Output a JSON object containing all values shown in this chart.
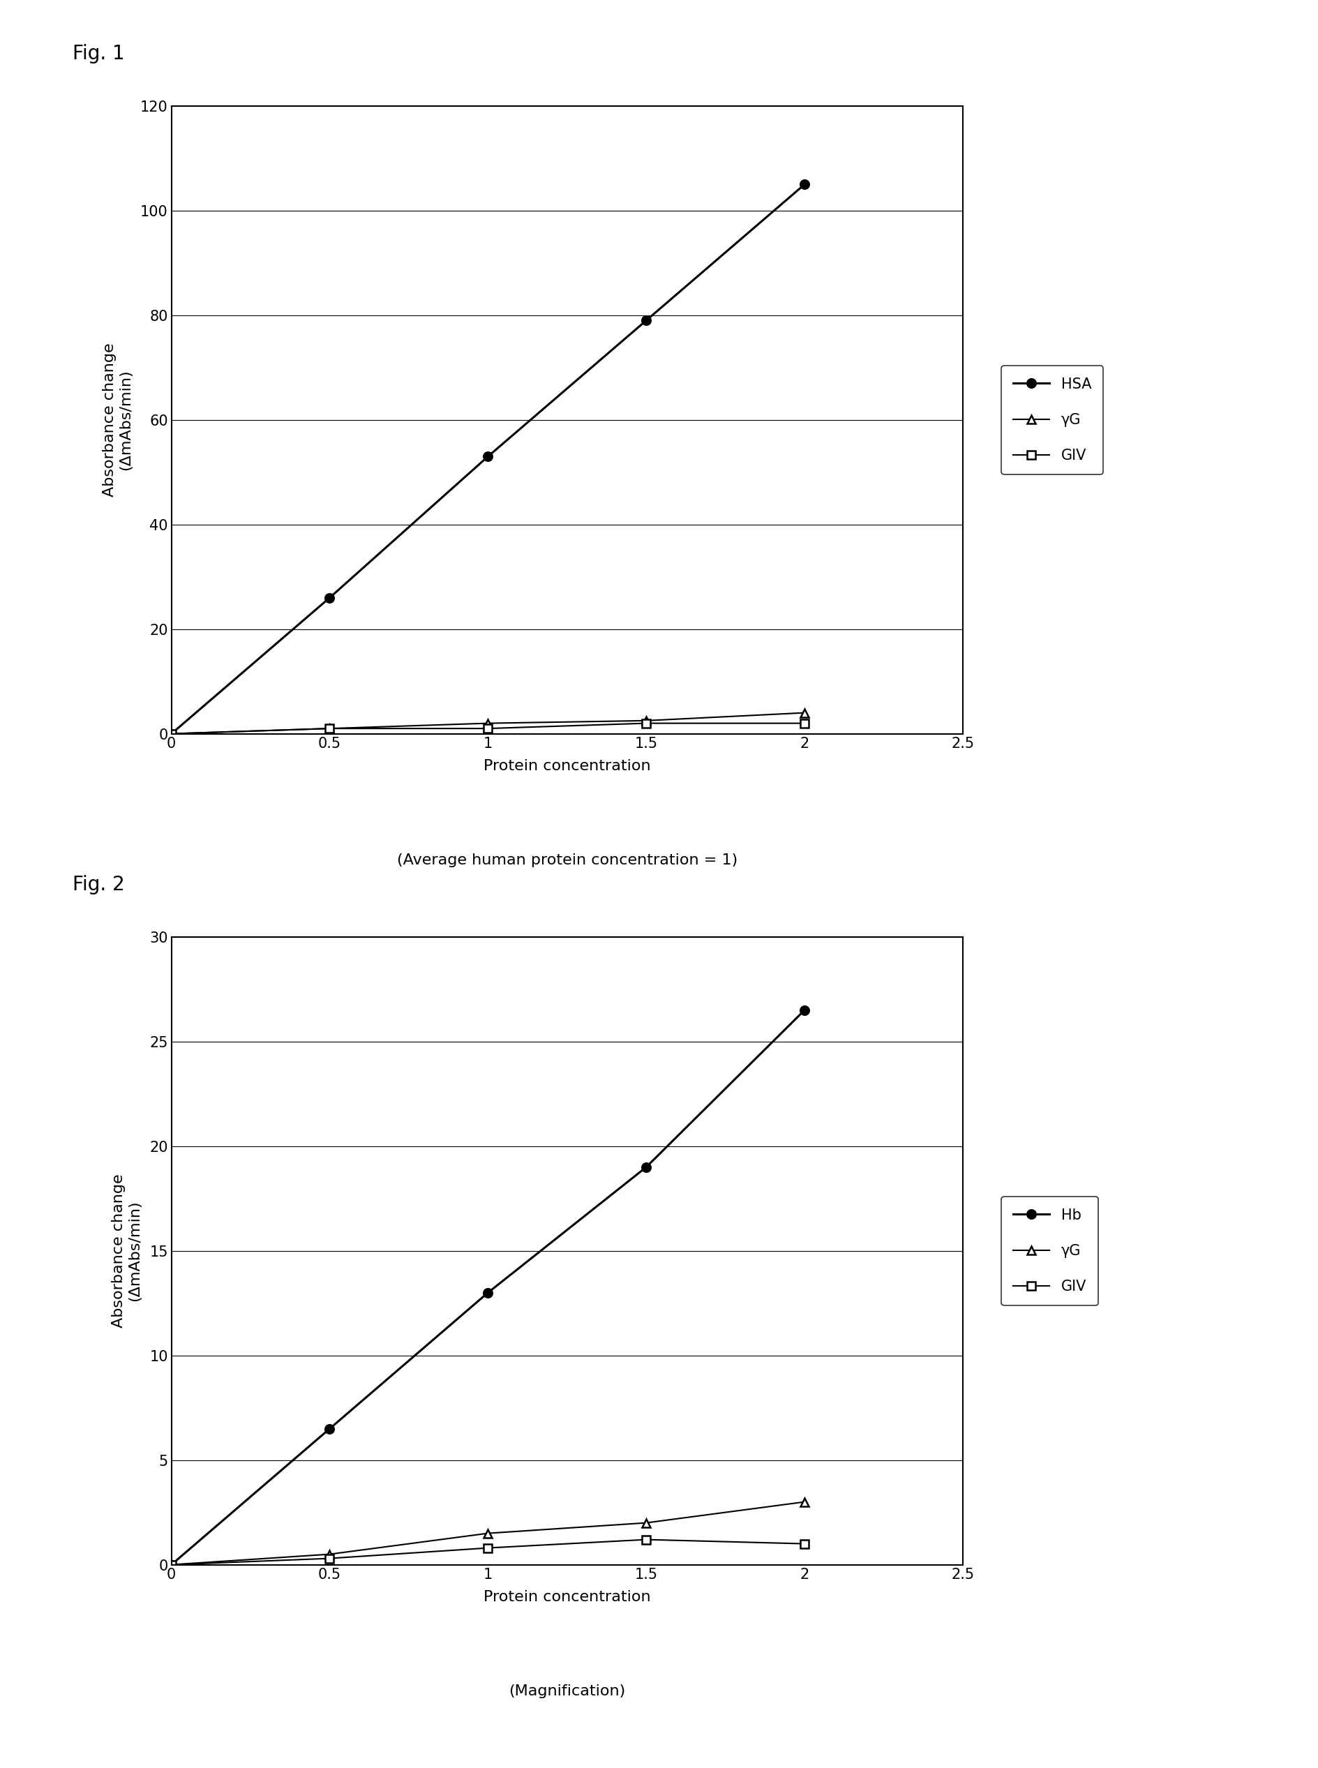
{
  "fig1": {
    "title": "Fig. 1",
    "series": [
      {
        "label": "HSA",
        "x": [
          0,
          0.5,
          1,
          1.5,
          2
        ],
        "y": [
          0,
          26,
          53,
          79,
          105
        ],
        "marker": "o",
        "markersize": 9,
        "color": "#000000",
        "linewidth": 2.2,
        "filled": true
      },
      {
        "label": "γG",
        "x": [
          0,
          0.5,
          1,
          1.5,
          2
        ],
        "y": [
          0,
          1,
          2,
          2.5,
          4
        ],
        "marker": "^",
        "markersize": 9,
        "color": "#000000",
        "linewidth": 1.5,
        "filled": false
      },
      {
        "label": "GIV",
        "x": [
          0,
          0.5,
          1,
          1.5,
          2
        ],
        "y": [
          0,
          1,
          1,
          2,
          2
        ],
        "marker": "s",
        "markersize": 8,
        "color": "#000000",
        "linewidth": 1.5,
        "filled": false
      }
    ],
    "xlim": [
      0,
      2.5
    ],
    "ylim": [
      0,
      120
    ],
    "xticks": [
      0,
      0.5,
      1,
      1.5,
      2,
      2.5
    ],
    "yticks": [
      0,
      20,
      40,
      60,
      80,
      100,
      120
    ],
    "xlabel": "Protein concentration",
    "xlabel2": "(Average human protein concentration = 1)",
    "ylabel": "Absorbance change\n(ΔmAbs/min)"
  },
  "fig2": {
    "title": "Fig. 2",
    "series": [
      {
        "label": "Hb",
        "x": [
          0,
          0.5,
          1,
          1.5,
          2
        ],
        "y": [
          0,
          6.5,
          13,
          19,
          26.5
        ],
        "marker": "o",
        "markersize": 9,
        "color": "#000000",
        "linewidth": 2.2,
        "filled": true
      },
      {
        "label": "γG",
        "x": [
          0,
          0.5,
          1,
          1.5,
          2
        ],
        "y": [
          0,
          0.5,
          1.5,
          2,
          3
        ],
        "marker": "^",
        "markersize": 9,
        "color": "#000000",
        "linewidth": 1.5,
        "filled": false
      },
      {
        "label": "GIV",
        "x": [
          0,
          0.5,
          1,
          1.5,
          2
        ],
        "y": [
          0,
          0.3,
          0.8,
          1.2,
          1.0
        ],
        "marker": "s",
        "markersize": 8,
        "color": "#000000",
        "linewidth": 1.5,
        "filled": false
      }
    ],
    "xlim": [
      0,
      2.5
    ],
    "ylim": [
      0,
      30
    ],
    "xticks": [
      0,
      0.5,
      1,
      1.5,
      2,
      2.5
    ],
    "yticks": [
      0,
      5,
      10,
      15,
      20,
      25,
      30
    ],
    "xlabel": "Protein concentration",
    "xlabel2": "(Magnification)",
    "ylabel": "Absorbance change\n(ΔmAbs/min)"
  },
  "background_color": "#ffffff",
  "font_size_axis": 16,
  "font_size_tick": 15,
  "font_size_legend": 15,
  "font_size_xlabel2": 16,
  "fig_label_fontsize": 20
}
